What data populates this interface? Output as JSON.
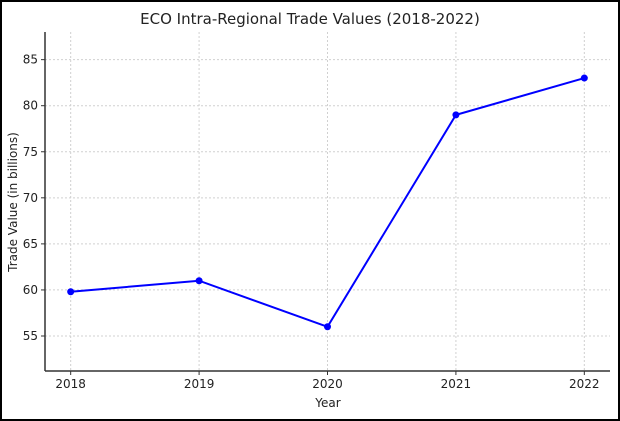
{
  "chart_data": {
    "type": "line",
    "title": "ECO Intra-Regional Trade Values (2018-2022)",
    "xlabel": "Year",
    "ylabel": "Trade Value (in billions)",
    "categories": [
      "2018",
      "2019",
      "2020",
      "2021",
      "2022"
    ],
    "x": [
      2018,
      2019,
      2020,
      2021,
      2022
    ],
    "values": [
      59.8,
      61,
      56,
      79,
      83
    ],
    "xlim": [
      2017.8,
      2022.2
    ],
    "ylim": [
      51.2,
      88
    ],
    "yticks": [
      55,
      60,
      65,
      70,
      75,
      80,
      85
    ],
    "grid": true,
    "line_color": "#0000ff",
    "marker": "circle",
    "legend": "none"
  }
}
